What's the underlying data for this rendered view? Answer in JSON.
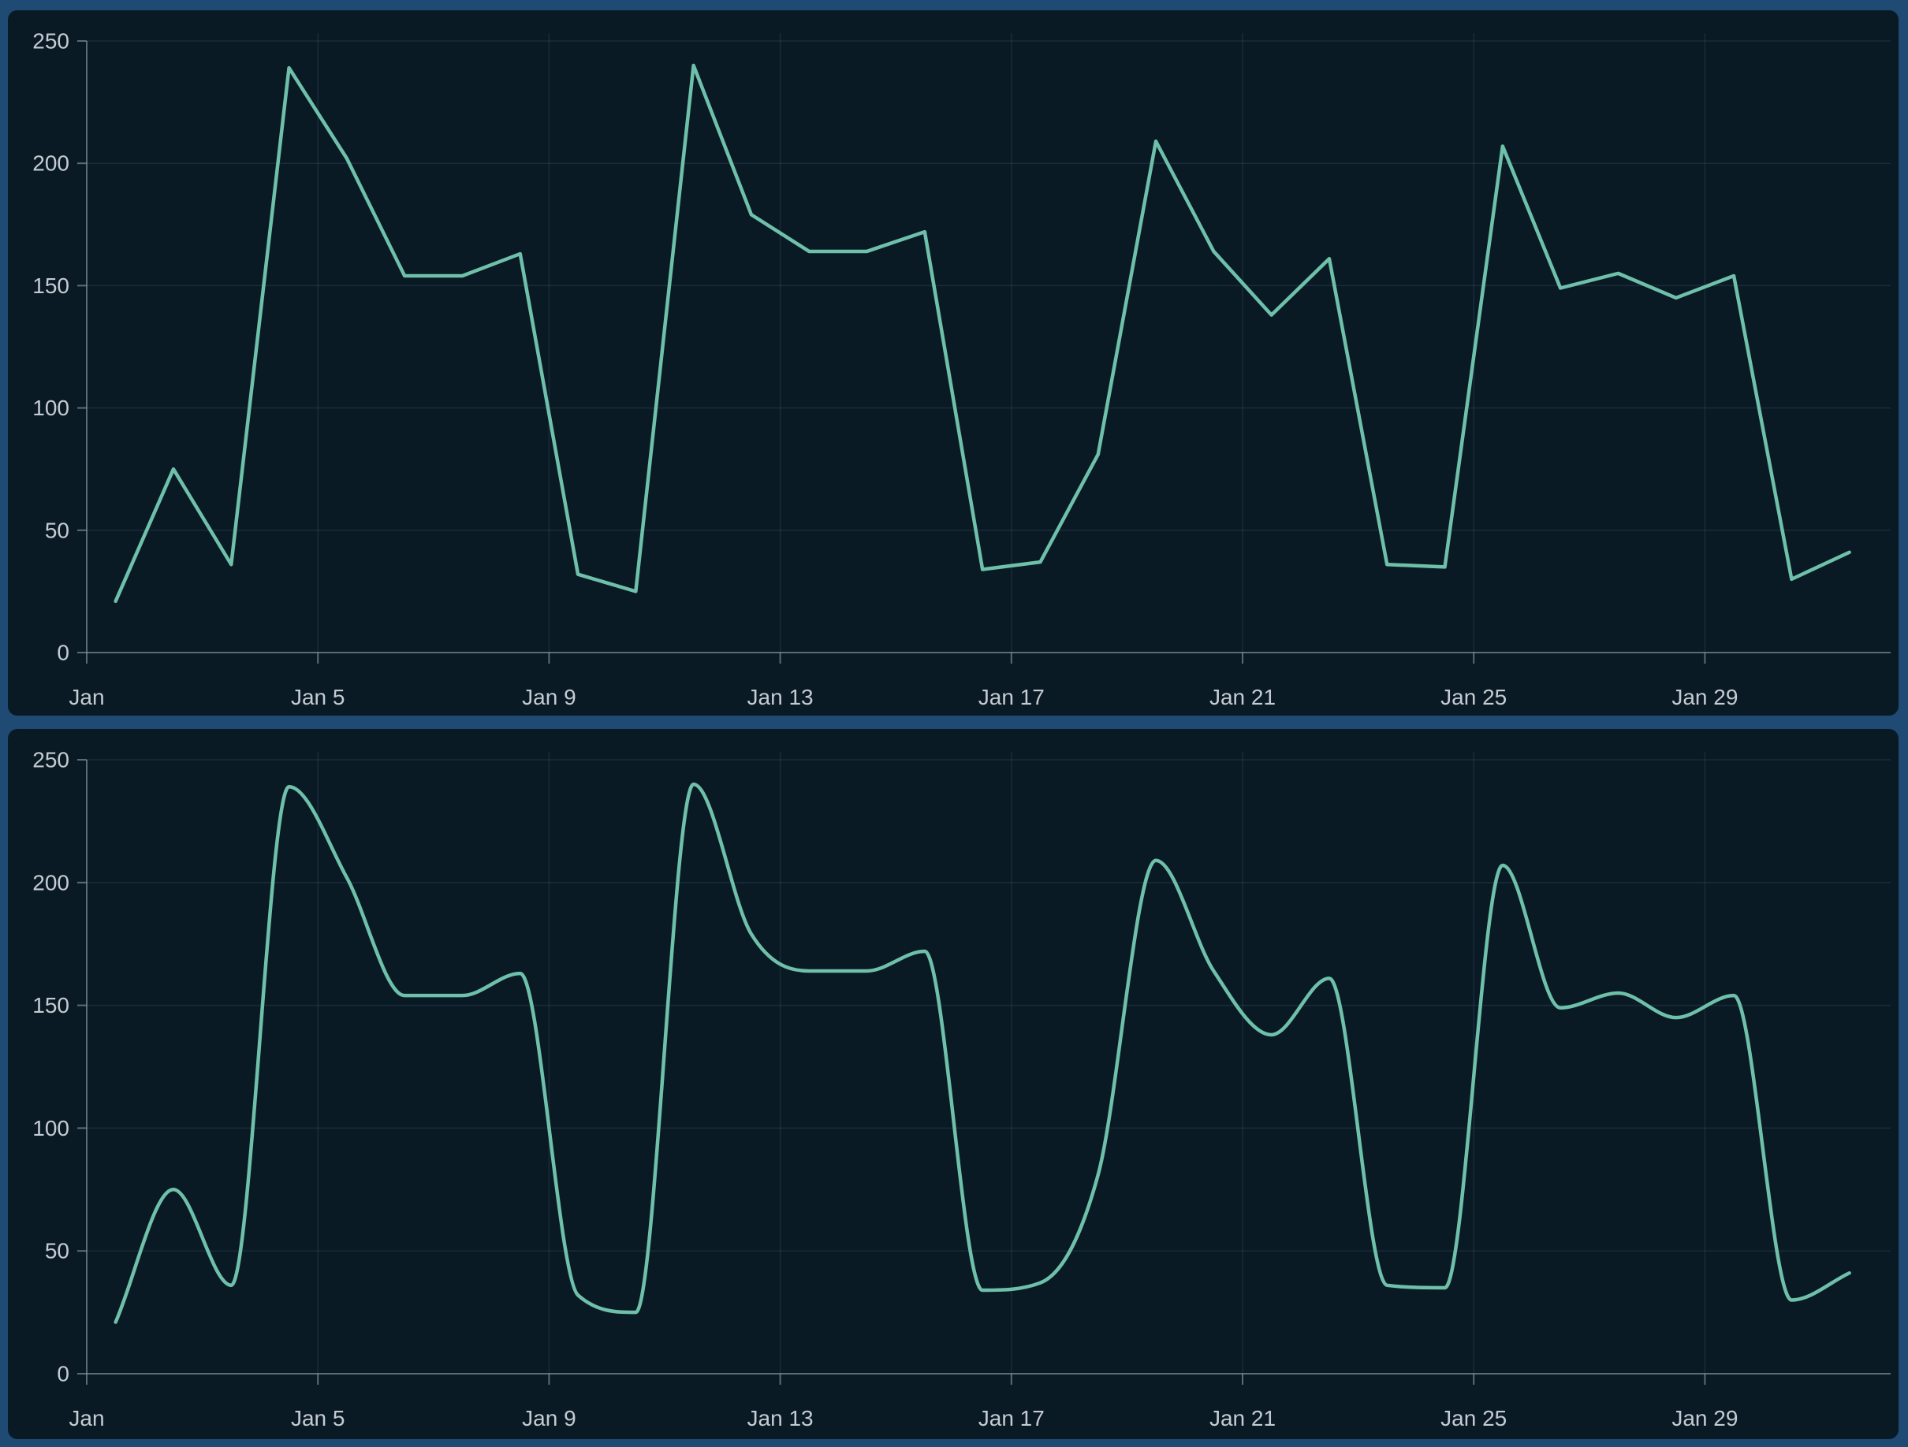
{
  "theme": {
    "page_background": "#1F4A73",
    "card_background": "#0A1A25",
    "line_color": "#6FC0AB",
    "grid_color": "rgba(141,172,202,0.12)",
    "axis_color": "#8A96A2",
    "tick_label_color": "#C5CBD2"
  },
  "chart_data": [
    {
      "type": "line",
      "interpolation": "linear",
      "title": "",
      "xlabel": "",
      "ylabel": "",
      "categories": [
        "Jan 1",
        "Jan 2",
        "Jan 3",
        "Jan 4",
        "Jan 5",
        "Jan 6",
        "Jan 7",
        "Jan 8",
        "Jan 9",
        "Jan 10",
        "Jan 11",
        "Jan 12",
        "Jan 13",
        "Jan 14",
        "Jan 15",
        "Jan 16",
        "Jan 17",
        "Jan 18",
        "Jan 19",
        "Jan 20",
        "Jan 21",
        "Jan 22",
        "Jan 23",
        "Jan 24",
        "Jan 25",
        "Jan 26",
        "Jan 27",
        "Jan 28",
        "Jan 29",
        "Jan 30",
        "Jan 31"
      ],
      "values": [
        21,
        75,
        36,
        239,
        202,
        154,
        154,
        163,
        32,
        25,
        240,
        179,
        164,
        164,
        172,
        34,
        37,
        81,
        209,
        164,
        138,
        161,
        36,
        35,
        207,
        149,
        155,
        145,
        154,
        30,
        41
      ],
      "x_tick_labels": [
        "Jan",
        "Jan 5",
        "Jan 9",
        "Jan 13",
        "Jan 17",
        "Jan 21",
        "Jan 25",
        "Jan 29"
      ],
      "x_tick_positions": [
        0,
        4,
        8,
        12,
        16,
        20,
        24,
        28
      ],
      "y_ticks": [
        0,
        50,
        100,
        150,
        200,
        250
      ],
      "ylim": [
        0,
        250
      ],
      "grid": true,
      "legend": false
    },
    {
      "type": "line",
      "interpolation": "smooth",
      "title": "",
      "xlabel": "",
      "ylabel": "",
      "categories": [
        "Jan 1",
        "Jan 2",
        "Jan 3",
        "Jan 4",
        "Jan 5",
        "Jan 6",
        "Jan 7",
        "Jan 8",
        "Jan 9",
        "Jan 10",
        "Jan 11",
        "Jan 12",
        "Jan 13",
        "Jan 14",
        "Jan 15",
        "Jan 16",
        "Jan 17",
        "Jan 18",
        "Jan 19",
        "Jan 20",
        "Jan 21",
        "Jan 22",
        "Jan 23",
        "Jan 24",
        "Jan 25",
        "Jan 26",
        "Jan 27",
        "Jan 28",
        "Jan 29",
        "Jan 30",
        "Jan 31"
      ],
      "values": [
        21,
        75,
        36,
        239,
        202,
        154,
        154,
        163,
        32,
        25,
        240,
        179,
        164,
        164,
        172,
        34,
        37,
        81,
        209,
        164,
        138,
        161,
        36,
        35,
        207,
        149,
        155,
        145,
        154,
        30,
        41
      ],
      "x_tick_labels": [
        "Jan",
        "Jan 5",
        "Jan 9",
        "Jan 13",
        "Jan 17",
        "Jan 21",
        "Jan 25",
        "Jan 29"
      ],
      "x_tick_positions": [
        0,
        4,
        8,
        12,
        16,
        20,
        24,
        28
      ],
      "y_ticks": [
        0,
        50,
        100,
        150,
        200,
        250
      ],
      "ylim": [
        0,
        250
      ],
      "grid": true,
      "legend": false
    }
  ]
}
